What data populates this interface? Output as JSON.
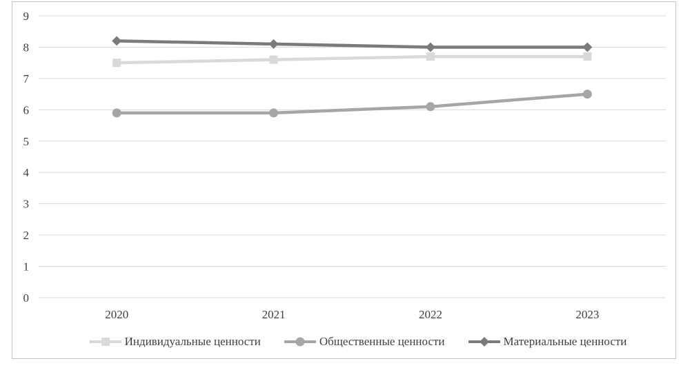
{
  "figure": {
    "background_color": "#ffffff",
    "frame_border_color": "#c3c3c3"
  },
  "chart_data": {
    "type": "line",
    "title": "",
    "xlabel": "",
    "ylabel": "",
    "categories": [
      "2020",
      "2021",
      "2022",
      "2023"
    ],
    "series": [
      {
        "name": "Индивидуальные ценности",
        "values": [
          7.5,
          7.6,
          7.7,
          7.7
        ],
        "color": "#d9d9d9",
        "marker": "square"
      },
      {
        "name": "Общественные ценности",
        "values": [
          5.9,
          5.9,
          6.1,
          6.5
        ],
        "color": "#a6a6a6",
        "marker": "circle"
      },
      {
        "name": "Материальные ценности",
        "values": [
          8.2,
          8.1,
          8.0,
          8.0
        ],
        "color": "#7a7a7a",
        "marker": "diamond"
      }
    ],
    "ylim": [
      0,
      9
    ],
    "yticks": [
      0,
      1,
      2,
      3,
      4,
      5,
      6,
      7,
      8,
      9
    ],
    "grid": true,
    "gridline_color": "#d9d9d9",
    "tick_label_color": "#3f3f3f",
    "legend_position": "bottom"
  }
}
